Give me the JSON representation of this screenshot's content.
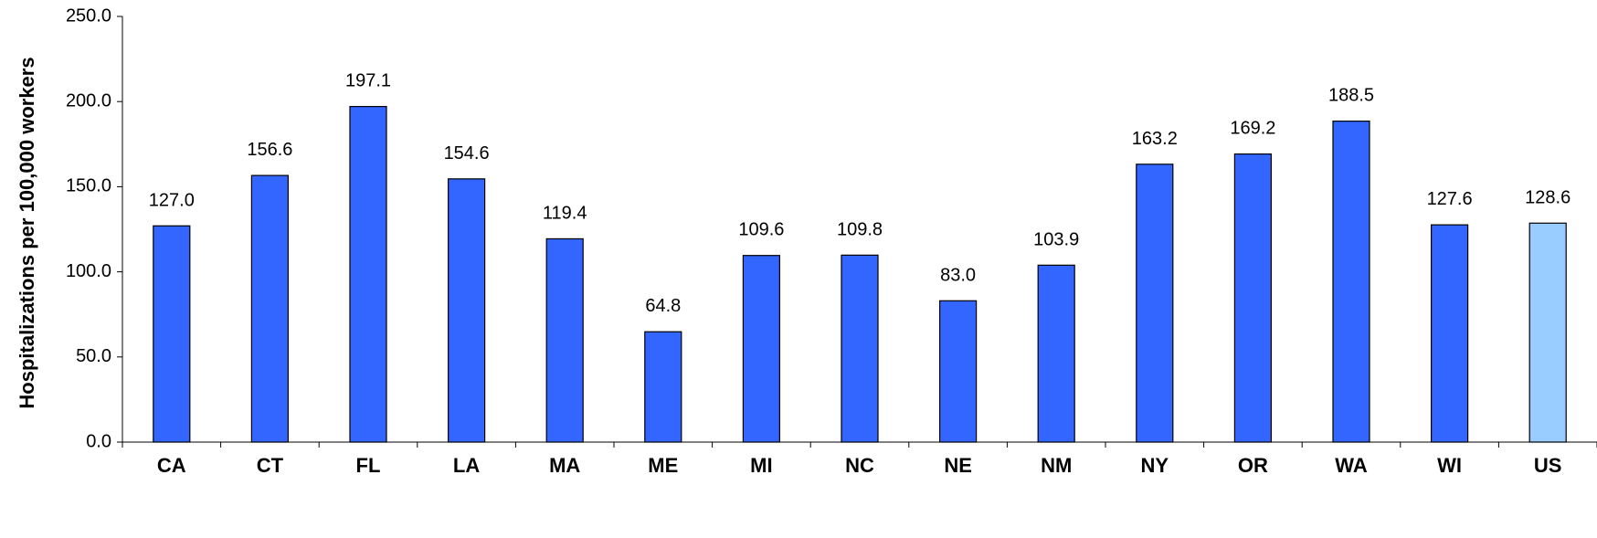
{
  "chart_data": {
    "type": "bar",
    "categories": [
      "CA",
      "CT",
      "FL",
      "LA",
      "MA",
      "ME",
      "MI",
      "NC",
      "NE",
      "NM",
      "NY",
      "OR",
      "WA",
      "WI",
      "US"
    ],
    "values": [
      127.0,
      156.6,
      197.1,
      154.6,
      119.4,
      64.8,
      109.6,
      109.8,
      83.0,
      103.9,
      163.2,
      169.2,
      188.5,
      127.6,
      128.6
    ],
    "value_labels": [
      "127.0",
      "156.6",
      "197.1",
      "154.6",
      "119.4",
      "64.8",
      "109.6",
      "109.8",
      "83.0",
      "103.9",
      "163.2",
      "169.2",
      "188.5",
      "127.6",
      "128.6"
    ],
    "highlight_category": "US",
    "title": "",
    "xlabel": "",
    "ylabel": "Hospitalizations per 100,000 workers",
    "ylim": [
      0,
      250
    ],
    "yticks": [
      "0.0",
      "50.0",
      "100.0",
      "150.0",
      "200.0",
      "250.0"
    ],
    "grid": false,
    "legend": "none",
    "colors": {
      "bar": "#3366FF",
      "highlight": "#99CCFF",
      "bar_stroke": "#000000",
      "axis": "#000000"
    }
  }
}
